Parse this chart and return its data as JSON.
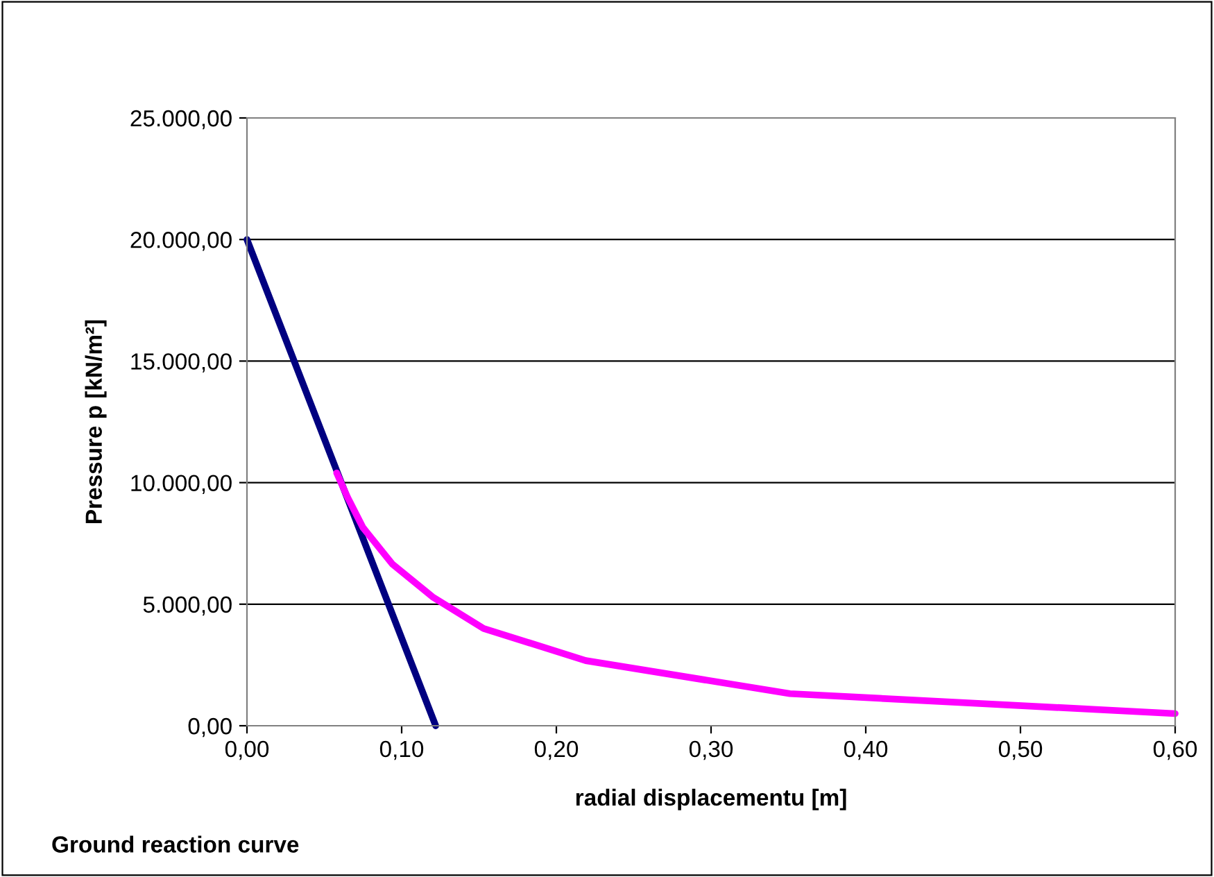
{
  "chart_data": {
    "type": "line",
    "xlabel": "radial displacementu [m]",
    "ylabel": "Pressure p [kN/m²]",
    "annotations": [
      "Ground reaction curve"
    ],
    "series": [
      {
        "color": "#000080",
        "x": [
          0.0,
          0.122
        ],
        "values": [
          20000,
          0
        ]
      },
      {
        "color": "#ff00ff",
        "x": [
          0.058,
          0.065,
          0.075,
          0.094,
          0.12,
          0.153,
          0.219,
          0.351,
          0.6
        ],
        "values": [
          10400,
          9400,
          8150,
          6650,
          5300,
          4000,
          2680,
          1320,
          500
        ]
      }
    ],
    "xlim": [
      0,
      0.6
    ],
    "xticks": [
      {
        "value": 0,
        "label": "0,00"
      },
      {
        "value": 0.1,
        "label": "0,10"
      },
      {
        "value": 0.2,
        "label": "0,20"
      },
      {
        "value": 0.3,
        "label": "0,30"
      },
      {
        "value": 0.4,
        "label": "0,40"
      },
      {
        "value": 0.5,
        "label": "0,50"
      },
      {
        "value": 0.6,
        "label": "0,60"
      }
    ],
    "ylim": [
      0,
      25000
    ],
    "yticks": [
      {
        "value": 0,
        "label": "0,00"
      },
      {
        "value": 5000,
        "label": "5.000,00"
      },
      {
        "value": 10000,
        "label": "10.000,00"
      },
      {
        "value": 15000,
        "label": "15.000,00"
      },
      {
        "value": 20000,
        "label": "20.000,00"
      },
      {
        "value": 25000,
        "label": "25.000,00"
      }
    ],
    "grid": "y",
    "marker": "none",
    "line_style": "solid"
  }
}
